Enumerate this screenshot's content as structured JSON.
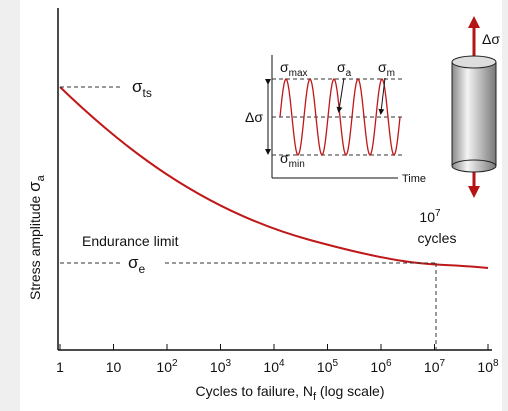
{
  "y_axis_label": {
    "text": "Stress  amplitude ",
    "sym": "σ",
    "sub": "a"
  },
  "x_axis_label": {
    "text": "Cycles to failure, N",
    "sub": "f",
    "tail": " (log scale)"
  },
  "x_ticks": [
    {
      "base": "1"
    },
    {
      "base": "10"
    },
    {
      "base": "10",
      "exp": "2"
    },
    {
      "base": "10",
      "exp": "3"
    },
    {
      "base": "10",
      "exp": "4"
    },
    {
      "base": "10",
      "exp": "5"
    },
    {
      "base": "10",
      "exp": "6"
    },
    {
      "base": "10",
      "exp": "7"
    },
    {
      "base": "10",
      "exp": "8"
    }
  ],
  "annotations": {
    "tensile_strength": {
      "sym": "σ",
      "sub": "ts"
    },
    "endurance_limit": "Endurance limit",
    "endurance_symbol": {
      "sym": "σ",
      "sub": "e"
    },
    "cycles_marker": {
      "base": "10",
      "exp": "7",
      "text": "cycles"
    }
  },
  "inset": {
    "max": {
      "sym": "σ",
      "sub": "max"
    },
    "amplitude": {
      "sym": "σ",
      "sub": "a"
    },
    "mean": {
      "sym": "σ",
      "sub": "m"
    },
    "min": {
      "sym": "σ",
      "sub": "min"
    },
    "range": "Δσ",
    "time": "Time"
  },
  "specimen_label": "Δσ"
}
